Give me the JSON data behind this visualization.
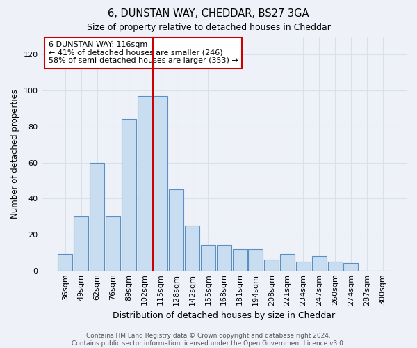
{
  "title1": "6, DUNSTAN WAY, CHEDDAR, BS27 3GA",
  "title2": "Size of property relative to detached houses in Cheddar",
  "xlabel": "Distribution of detached houses by size in Cheddar",
  "ylabel": "Number of detached properties",
  "categories": [
    "36sqm",
    "49sqm",
    "62sqm",
    "76sqm",
    "89sqm",
    "102sqm",
    "115sqm",
    "128sqm",
    "142sqm",
    "155sqm",
    "168sqm",
    "181sqm",
    "194sqm",
    "208sqm",
    "221sqm",
    "234sqm",
    "247sqm",
    "260sqm",
    "274sqm",
    "287sqm",
    "300sqm"
  ],
  "values": [
    9,
    30,
    60,
    30,
    84,
    97,
    97,
    45,
    25,
    14,
    14,
    12,
    12,
    6,
    9,
    5,
    8,
    5,
    4,
    0,
    0
  ],
  "bar_color": "#c8ddf0",
  "bar_edge_color": "#5a8fc4",
  "vline_x_index": 6,
  "vline_color": "#cc0000",
  "annotation_text": "6 DUNSTAN WAY: 116sqm\n← 41% of detached houses are smaller (246)\n58% of semi-detached houses are larger (353) →",
  "annotation_box_color": "white",
  "annotation_box_edge": "#cc0000",
  "footer": "Contains HM Land Registry data © Crown copyright and database right 2024.\nContains public sector information licensed under the Open Government Licence v3.0.",
  "ylim": [
    0,
    130
  ],
  "yticks": [
    0,
    20,
    40,
    60,
    80,
    100,
    120
  ],
  "grid_color": "#d8e0ea",
  "bg_color": "#eef2f8"
}
